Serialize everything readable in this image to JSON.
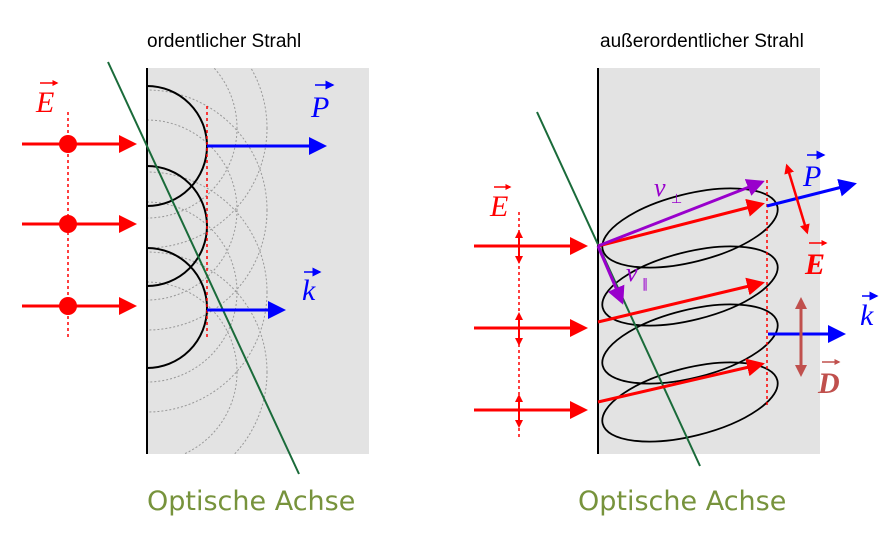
{
  "colors": {
    "medium_fill": "#e3e3e3",
    "field_red": "#ff0000",
    "poynting_blue": "#0000ff",
    "velocity_purple": "#9900cc",
    "optic_axis_green": "#1a6b3a",
    "caption_green": "#77933c",
    "d_field_brown": "#c0504d"
  },
  "left_panel": {
    "title": "ordentlicher Strahl",
    "axis_caption": "Optische Achse",
    "labels": {
      "E": "E",
      "P": "P",
      "k": "k"
    }
  },
  "right_panel": {
    "title": "außerordentlicher Strahl",
    "axis_caption": "Optische Achse",
    "labels": {
      "E_in": "E",
      "v_perp": "v",
      "v_perp_sub": "⊥",
      "v_par": "v",
      "v_par_sub": "∥",
      "P": "P",
      "E_out": "E",
      "k": "k",
      "D": "D"
    }
  }
}
